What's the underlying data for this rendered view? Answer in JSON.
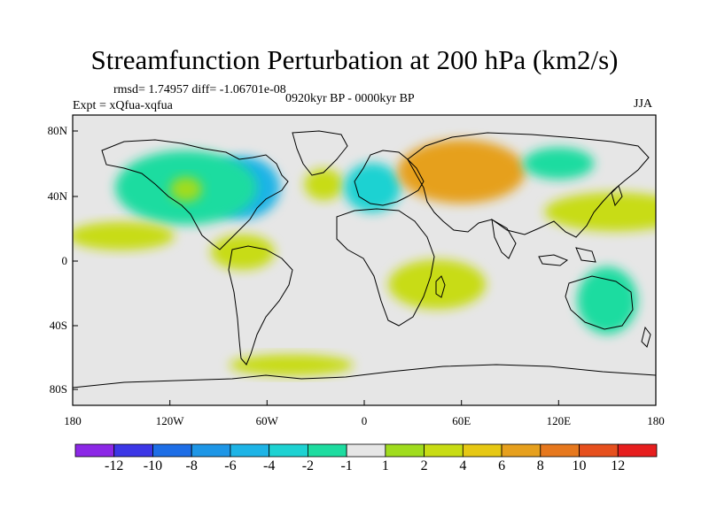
{
  "title": "Streamfunction Perturbation at 200 hPa (km2/s)",
  "stats": {
    "rmsd_text": "rmsd= 1.74957 diff= -1.06701e-08"
  },
  "experiment": "Expt = xQfua-xqfua",
  "period": "0920kyr BP - 0000kyr BP",
  "season": "JJA",
  "x_ticks": [
    "180",
    "120W",
    "60W",
    "0",
    "60E",
    "120E",
    "180"
  ],
  "y_ticks": [
    "80N",
    "40N",
    "0",
    "40S",
    "80S"
  ],
  "colorbar": {
    "labels": [
      "-12",
      "-10",
      "-8",
      "-6",
      "-4",
      "-2",
      "-1",
      "1",
      "2",
      "4",
      "6",
      "8",
      "10",
      "12"
    ],
    "colors": [
      "#8c28e6",
      "#3c37e6",
      "#1e6ee6",
      "#1e96e6",
      "#1eb4e6",
      "#1ed2d2",
      "#1edca0",
      "#e6e6e6",
      "#a0dc1e",
      "#c8dc14",
      "#e6c814",
      "#e6a01e",
      "#e6781e",
      "#e6501e",
      "#e61e1e"
    ]
  },
  "map": {
    "background_color": "#e6e6e6",
    "anomalies": [
      {
        "name": "na-low",
        "lon": -75,
        "lat": 45,
        "level": -6
      },
      {
        "name": "na-ring",
        "lon": -110,
        "lat": 45,
        "level": -2
      },
      {
        "name": "na-hole",
        "lon": -110,
        "lat": 44,
        "level": 1
      },
      {
        "name": "atl-high",
        "lon": -25,
        "lat": 47,
        "level": 2
      },
      {
        "name": "eur-low",
        "lon": 5,
        "lat": 45,
        "level": -4
      },
      {
        "name": "sib-high",
        "lon": 60,
        "lat": 55,
        "level": 6
      },
      {
        "name": "pac-high",
        "lon": 155,
        "lat": 30,
        "level": 2
      },
      {
        "name": "np-low",
        "lon": 120,
        "lat": 60,
        "level": -2
      },
      {
        "name": "sa-high",
        "lon": -75,
        "lat": 5,
        "level": 2
      },
      {
        "name": "sp-high",
        "lon": -150,
        "lat": 15,
        "level": 2
      },
      {
        "name": "aus-low",
        "lon": 150,
        "lat": -25,
        "level": -2
      },
      {
        "name": "africa-high",
        "lon": 45,
        "lat": -15,
        "level": 2
      },
      {
        "name": "south-high",
        "lon": -45,
        "lat": -65,
        "level": 2
      }
    ]
  }
}
